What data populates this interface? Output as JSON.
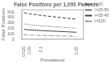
{
  "chart_data": {
    "type": "line",
    "title": "False Positives per 1,000 Patients",
    "xlabel": "Prevalence",
    "ylabel": "False Positives",
    "x": [
      0.025,
      0.05,
      0.1,
      0.25
    ],
    "series": [
      {
        "name": ">=20",
        "color": "#444444",
        "line_style": "dashed",
        "values": [
          490,
          470,
          440,
          370
        ]
      },
      {
        "name": ">=25-50",
        "color": "#444444",
        "line_style": "dotted",
        "values": [
          285,
          270,
          250,
          205
        ]
      },
      {
        "name": ">=35-45",
        "color": "#444444",
        "line_style": "solid",
        "values": [
          185,
          175,
          162,
          132
        ]
      },
      {
        "name": ">=100",
        "color": "#888888",
        "line_style": "dashdot",
        "values": [
          85,
          80,
          73,
          58
        ]
      }
    ],
    "xlim": [
      0.015,
      0.28
    ],
    "ylim": [
      0,
      550
    ],
    "xticks": [
      0.025,
      0.05,
      0.1,
      0.25
    ],
    "yticks": [
      0,
      100,
      200,
      300,
      400,
      500
    ],
    "grid": false,
    "legend": "upper right"
  }
}
